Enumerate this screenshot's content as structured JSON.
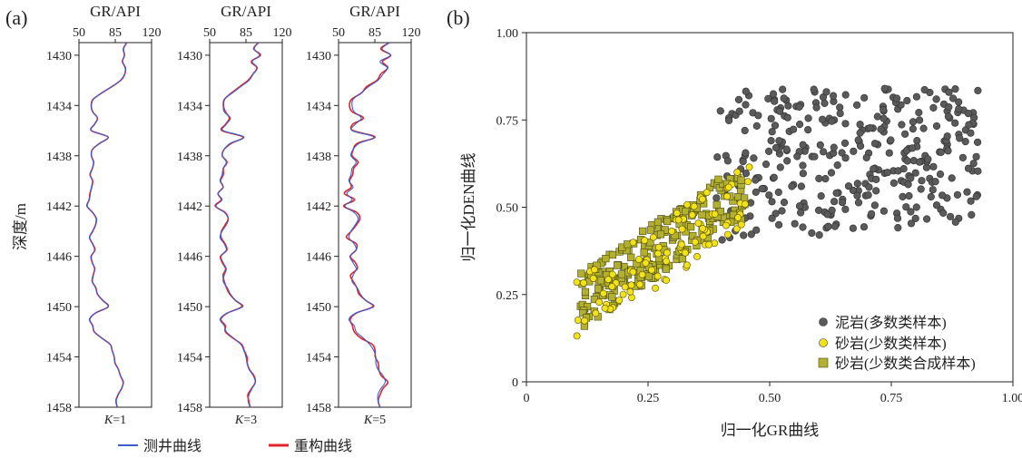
{
  "panel_a_label": "(a)",
  "panel_b_label": "(b)",
  "chart_data": [
    {
      "type": "line",
      "panel": "(a)",
      "x_axis_label": "GR/API",
      "x_ticks": [
        "50",
        "85",
        "120"
      ],
      "xlim": [
        50,
        120
      ],
      "y_axis_label": "深度/m",
      "y_ticks": [
        "1430",
        "1434",
        "1438",
        "1442",
        "1446",
        "1450",
        "1454",
        "1458"
      ],
      "ylim": [
        1429,
        1458
      ],
      "y_reversed": true,
      "series_colors": {
        "measured": "#3a5fcd",
        "reconstructed": "#e0242b"
      },
      "legend": [
        {
          "label": "测井曲线",
          "color": "#3a5fcd"
        },
        {
          "label": "重构曲线",
          "color": "#e0242b"
        }
      ],
      "tracks": [
        {
          "k_prefix": "K",
          "k_suffix": "=1",
          "reconstruction_noise": 0.4,
          "measured": [
            [
              1429.0,
              96
            ],
            [
              1429.5,
              93
            ],
            [
              1430.0,
              94
            ],
            [
              1430.5,
              92
            ],
            [
              1431.0,
              95
            ],
            [
              1431.5,
              94
            ],
            [
              1432.0,
              90
            ],
            [
              1432.5,
              82
            ],
            [
              1433.0,
              72
            ],
            [
              1433.5,
              64
            ],
            [
              1434.0,
              62
            ],
            [
              1434.5,
              63
            ],
            [
              1435.0,
              68
            ],
            [
              1435.5,
              65
            ],
            [
              1436.0,
              62
            ],
            [
              1436.5,
              78
            ],
            [
              1437.0,
              70
            ],
            [
              1437.5,
              63
            ],
            [
              1438.0,
              62
            ],
            [
              1438.5,
              64
            ],
            [
              1439.0,
              63
            ],
            [
              1439.5,
              61
            ],
            [
              1440.0,
              63
            ],
            [
              1440.5,
              62
            ],
            [
              1441.0,
              61
            ],
            [
              1441.5,
              60
            ],
            [
              1442.0,
              58
            ],
            [
              1442.5,
              63
            ],
            [
              1443.0,
              67
            ],
            [
              1443.5,
              66
            ],
            [
              1444.0,
              63
            ],
            [
              1444.5,
              60
            ],
            [
              1445.0,
              63
            ],
            [
              1445.5,
              65
            ],
            [
              1446.0,
              62
            ],
            [
              1446.5,
              63
            ],
            [
              1447.0,
              65
            ],
            [
              1447.5,
              64
            ],
            [
              1448.0,
              63
            ],
            [
              1448.5,
              66
            ],
            [
              1449.0,
              68
            ],
            [
              1449.5,
              73
            ],
            [
              1450.0,
              78
            ],
            [
              1450.5,
              66
            ],
            [
              1451.0,
              60
            ],
            [
              1451.5,
              63
            ],
            [
              1452.0,
              65
            ],
            [
              1452.5,
              72
            ],
            [
              1453.0,
              80
            ],
            [
              1453.5,
              82
            ],
            [
              1454.0,
              84
            ],
            [
              1454.5,
              85
            ],
            [
              1455.0,
              88
            ],
            [
              1455.5,
              90
            ],
            [
              1456.0,
              93
            ],
            [
              1456.5,
              91
            ],
            [
              1457.0,
              88
            ],
            [
              1457.5,
              86
            ],
            [
              1458.0,
              87
            ]
          ]
        },
        {
          "k_prefix": "K",
          "k_suffix": "=3",
          "reconstruction_noise": 1.2,
          "measured": [
            [
              1429.0,
              97
            ],
            [
              1429.5,
              93
            ],
            [
              1430.0,
              98
            ],
            [
              1430.5,
              91
            ],
            [
              1431.0,
              96
            ],
            [
              1431.5,
              92
            ],
            [
              1432.0,
              88
            ],
            [
              1432.5,
              80
            ],
            [
              1433.0,
              72
            ],
            [
              1433.5,
              64
            ],
            [
              1434.0,
              63
            ],
            [
              1434.5,
              64
            ],
            [
              1435.0,
              70
            ],
            [
              1435.5,
              66
            ],
            [
              1436.0,
              63
            ],
            [
              1436.5,
              83
            ],
            [
              1437.0,
              70
            ],
            [
              1437.5,
              64
            ],
            [
              1438.0,
              62
            ],
            [
              1438.5,
              66
            ],
            [
              1439.0,
              63
            ],
            [
              1439.5,
              62
            ],
            [
              1440.0,
              60
            ],
            [
              1440.5,
              63
            ],
            [
              1441.0,
              58
            ],
            [
              1441.5,
              62
            ],
            [
              1442.0,
              56
            ],
            [
              1442.5,
              64
            ],
            [
              1443.0,
              68
            ],
            [
              1443.5,
              66
            ],
            [
              1444.0,
              62
            ],
            [
              1444.5,
              60
            ],
            [
              1445.0,
              64
            ],
            [
              1445.5,
              66
            ],
            [
              1446.0,
              61
            ],
            [
              1446.5,
              63
            ],
            [
              1447.0,
              66
            ],
            [
              1447.5,
              64
            ],
            [
              1448.0,
              63
            ],
            [
              1448.5,
              67
            ],
            [
              1449.0,
              70
            ],
            [
              1449.5,
              75
            ],
            [
              1450.0,
              82
            ],
            [
              1450.5,
              67
            ],
            [
              1451.0,
              60
            ],
            [
              1451.5,
              64
            ],
            [
              1452.0,
              66
            ],
            [
              1452.5,
              73
            ],
            [
              1453.0,
              80
            ],
            [
              1453.5,
              83
            ],
            [
              1454.0,
              85
            ],
            [
              1454.5,
              86
            ],
            [
              1455.0,
              88
            ],
            [
              1455.5,
              92
            ],
            [
              1456.0,
              94
            ],
            [
              1456.5,
              91
            ],
            [
              1457.0,
              88
            ],
            [
              1457.5,
              87
            ],
            [
              1458.0,
              89
            ]
          ]
        },
        {
          "k_prefix": "K",
          "k_suffix": "=5",
          "reconstruction_noise": 2.6,
          "measured": [
            [
              1429.0,
              99
            ],
            [
              1429.5,
              92
            ],
            [
              1430.0,
              100
            ],
            [
              1430.5,
              90
            ],
            [
              1431.0,
              97
            ],
            [
              1431.5,
              93
            ],
            [
              1432.0,
              88
            ],
            [
              1432.5,
              79
            ],
            [
              1433.0,
              72
            ],
            [
              1433.5,
              64
            ],
            [
              1434.0,
              63
            ],
            [
              1434.5,
              65
            ],
            [
              1435.0,
              72
            ],
            [
              1435.5,
              66
            ],
            [
              1436.0,
              63
            ],
            [
              1436.5,
              84
            ],
            [
              1437.0,
              70
            ],
            [
              1437.5,
              64
            ],
            [
              1438.0,
              62
            ],
            [
              1438.5,
              67
            ],
            [
              1439.0,
              63
            ],
            [
              1439.5,
              62
            ],
            [
              1440.0,
              60
            ],
            [
              1440.5,
              64
            ],
            [
              1441.0,
              58
            ],
            [
              1441.5,
              63
            ],
            [
              1442.0,
              56
            ],
            [
              1442.5,
              65
            ],
            [
              1443.0,
              69
            ],
            [
              1443.5,
              66
            ],
            [
              1444.0,
              62
            ],
            [
              1444.5,
              60
            ],
            [
              1445.0,
              65
            ],
            [
              1445.5,
              67
            ],
            [
              1446.0,
              61
            ],
            [
              1446.5,
              64
            ],
            [
              1447.0,
              67
            ],
            [
              1447.5,
              64
            ],
            [
              1448.0,
              63
            ],
            [
              1448.5,
              68
            ],
            [
              1449.0,
              71
            ],
            [
              1449.5,
              76
            ],
            [
              1450.0,
              84
            ],
            [
              1450.5,
              67
            ],
            [
              1451.0,
              60
            ],
            [
              1451.5,
              65
            ],
            [
              1452.0,
              67
            ],
            [
              1452.5,
              74
            ],
            [
              1453.0,
              80
            ],
            [
              1453.5,
              84
            ],
            [
              1454.0,
              86
            ],
            [
              1454.5,
              86
            ],
            [
              1455.0,
              88
            ],
            [
              1455.5,
              93
            ],
            [
              1456.0,
              95
            ],
            [
              1456.5,
              91
            ],
            [
              1457.0,
              88
            ],
            [
              1457.5,
              88
            ],
            [
              1458.0,
              90
            ]
          ]
        }
      ]
    },
    {
      "type": "scatter",
      "panel": "(b)",
      "xlabel": "归一化GR曲线",
      "ylabel": "归一化DEN曲线",
      "xlim": [
        0,
        1.0
      ],
      "ylim": [
        0,
        1.0
      ],
      "x_ticks": [
        "0",
        "0.25",
        "0.50",
        "0.75",
        "1.00"
      ],
      "y_ticks": [
        "0",
        "0.25",
        "0.50",
        "0.75",
        "1.00"
      ],
      "legend_position": "bottom-right",
      "series": [
        {
          "name": "泥岩(多数类样本)",
          "marker": "circle",
          "color": "#5a5a5a",
          "generator": {
            "count": 340,
            "x_range": [
              0.38,
              0.93
            ],
            "y_range": [
              0.38,
              0.85
            ],
            "lower_edge": "0.35+0.1*(x-0.38)"
          }
        },
        {
          "name": "砂岩(少数类样本)",
          "marker": "circle",
          "color": "#f2e21a",
          "generator": {
            "count": 95,
            "band": "y = 0.20 + 0.95*(x-0.10)",
            "x_range": [
              0.1,
              0.46
            ],
            "spread": 0.09
          }
        },
        {
          "name": "砂岩(少数类合成样本)",
          "marker": "square",
          "color": "#b2b02e",
          "generator": {
            "count": 230,
            "band": "y = 0.22 + 0.95*(x-0.10)",
            "x_range": [
              0.11,
              0.45
            ],
            "spread": 0.08
          }
        }
      ]
    }
  ]
}
